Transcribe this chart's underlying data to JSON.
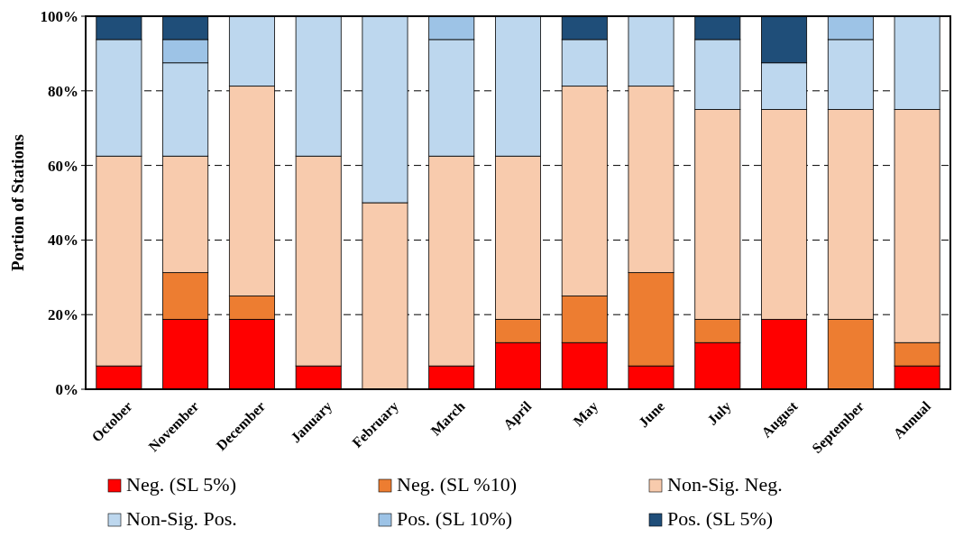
{
  "chart_data": {
    "type": "bar",
    "stacked": true,
    "ylabel": "Portion of Stations",
    "categories": [
      "October",
      "November",
      "December",
      "January",
      "February",
      "March",
      "April",
      "May",
      "June",
      "July",
      "August",
      "September",
      "Annual"
    ],
    "series": [
      {
        "name": "Neg. (SL 5%)",
        "color": "#ff0000",
        "values": [
          6.25,
          18.75,
          18.75,
          6.25,
          0,
          6.25,
          12.5,
          12.5,
          6.25,
          12.5,
          18.75,
          0,
          6.25
        ]
      },
      {
        "name": "Neg. (SL %10)",
        "color": "#ed7d31",
        "values": [
          0,
          12.5,
          6.25,
          0,
          0,
          0,
          6.25,
          12.5,
          25,
          6.25,
          0,
          18.75,
          6.25
        ]
      },
      {
        "name": "Non-Sig. Neg.",
        "color": "#f8cbad",
        "values": [
          56.25,
          31.25,
          56.25,
          56.25,
          50,
          56.25,
          43.75,
          56.25,
          50,
          56.25,
          56.25,
          56.25,
          62.5
        ]
      },
      {
        "name": "Non-Sig. Pos.",
        "color": "#bdd7ee",
        "values": [
          31.25,
          25,
          18.75,
          37.5,
          50,
          31.25,
          37.5,
          12.5,
          18.75,
          18.75,
          12.5,
          18.75,
          25
        ]
      },
      {
        "name": "Pos. (SL 10%)",
        "color": "#9dc3e6",
        "values": [
          0,
          6.25,
          0,
          0,
          0,
          6.25,
          0,
          0,
          0,
          0,
          0,
          6.25,
          0
        ]
      },
      {
        "name": "Pos. (SL 5%)",
        "color": "#1f4e79",
        "values": [
          6.25,
          6.25,
          0,
          0,
          0,
          0,
          0,
          6.25,
          0,
          6.25,
          12.5,
          0,
          0
        ]
      }
    ],
    "ylim": [
      0,
      100
    ],
    "yticks": [
      {
        "value": 0,
        "label": "0%"
      },
      {
        "value": 20,
        "label": "20%"
      },
      {
        "value": 40,
        "label": "40%"
      },
      {
        "value": 60,
        "label": "60%"
      },
      {
        "value": 80,
        "label": "80%"
      },
      {
        "value": 100,
        "label": "100%"
      }
    ],
    "grid": "y",
    "legend": "bottom"
  }
}
